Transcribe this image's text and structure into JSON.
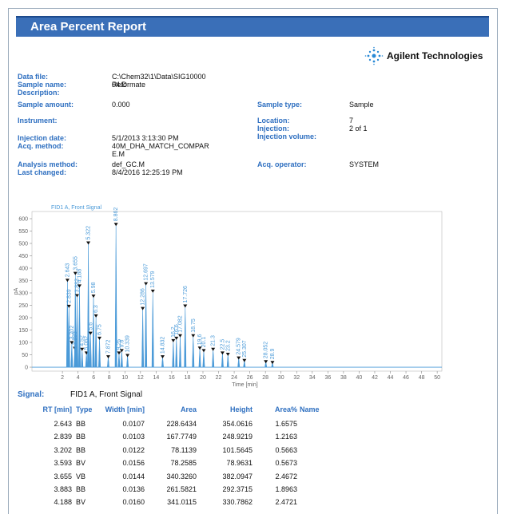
{
  "header": {
    "title": "Area Percent Report",
    "logo": "Agilent Technologies"
  },
  "fields_left": [
    {
      "label": "Data file:",
      "value": "C:\\Chem32\\1\\Data\\SIG1000004.D"
    },
    {
      "label": "Sample name:",
      "value": "Reformate"
    },
    {
      "label": "Description:"
    },
    {
      "label": "Sample amount:",
      "value": "0.000"
    },
    {
      "label": "Instrument:"
    },
    {
      "label": "Injection date:",
      "value": "5/1/2013 3:13:30 PM"
    },
    {
      "label": "Acq. method:",
      "value": "40M_DHA_MATCH_COMPARE.M"
    },
    {
      "label": "Analysis method:",
      "value": "def_GC.M"
    },
    {
      "label": "Last changed:",
      "value": "8/4/2016 12:25:19 PM"
    }
  ],
  "fields_right": [
    {
      "label": "Sample type:",
      "value": "Sample"
    },
    {
      "label": "Location:",
      "value": "7"
    },
    {
      "label": "Injection:",
      "value": "2 of 1"
    },
    {
      "label": "Injection volume:"
    },
    {
      "label": "Acq. operator:",
      "value": "SYSTEM"
    }
  ],
  "chart_data": {
    "type": "chromatogram",
    "title": "FID1 A, Front Signal",
    "x_label": "Time [min]",
    "y_label": "pA",
    "color": "#4a9ad8",
    "x": [
      2.643,
      2.839,
      3.202,
      3.593,
      3.655,
      3.883,
      4.188,
      4.52,
      5.082,
      5.322,
      5.6,
      5.98,
      6.3,
      6.75,
      7.872,
      8.862,
      9.25,
      9.6,
      10.339,
      12.286,
      12.697,
      13.579,
      14.832,
      16.2,
      16.6,
      17.082,
      17.726,
      18.75,
      19.6,
      20.1,
      21.3,
      22.5,
      23.2,
      24.579,
      25.307,
      28.052,
      28.9
    ],
    "values": [
      354,
      249,
      102,
      79,
      382,
      292,
      331,
      75,
      60,
      505,
      140,
      290,
      210,
      120,
      45,
      580,
      60,
      70,
      50,
      240,
      340,
      310,
      45,
      110,
      120,
      130,
      250,
      130,
      80,
      70,
      75,
      60,
      55,
      40,
      30,
      25,
      22
    ],
    "xlim": [
      -1.9,
      50.6
    ],
    "ylim": [
      -16,
      629
    ],
    "xticks": [
      2,
      4,
      6,
      8,
      10,
      12,
      14,
      16,
      18,
      20,
      22,
      24,
      26,
      28,
      30,
      32,
      34,
      36,
      38,
      40,
      42,
      44,
      46,
      48,
      50
    ],
    "yticks": [
      0,
      50,
      100,
      150,
      200,
      250,
      300,
      350,
      400,
      450,
      500,
      550,
      600
    ]
  },
  "signal": {
    "label": "Signal:",
    "value": "FID1 A, Front Signal"
  },
  "table": {
    "columns": [
      "RT [min]",
      "Type",
      "Width [min]",
      "Area",
      "Height",
      "Area%",
      "Name"
    ],
    "rows": [
      [
        "2.643",
        "BB",
        "0.0107",
        "228.6434",
        "354.0616",
        "1.6575"
      ],
      [
        "2.839",
        "BB",
        "0.0103",
        "167.7749",
        "248.9219",
        "1.2163"
      ],
      [
        "3.202",
        "BB",
        "0.0122",
        "78.1139",
        "101.5645",
        "0.5663"
      ],
      [
        "3.593",
        "BV",
        "0.0156",
        "78.2585",
        "78.9631",
        "0.5673"
      ],
      [
        "3.655",
        "VB",
        "0.0144",
        "340.3260",
        "382.0947",
        "2.4672"
      ],
      [
        "3.883",
        "BB",
        "0.0136",
        "261.5821",
        "292.3715",
        "1.8963"
      ],
      [
        "4.188",
        "BV",
        "0.0160",
        "341.0115",
        "330.7862",
        "2.4721"
      ]
    ]
  }
}
